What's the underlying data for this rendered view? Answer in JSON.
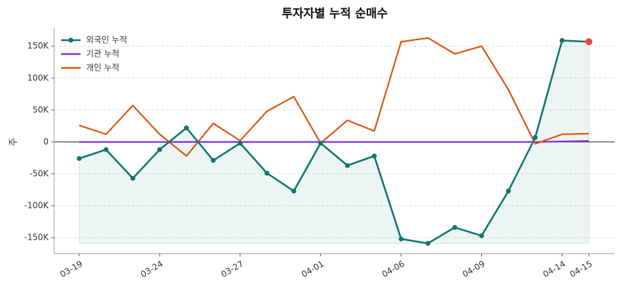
{
  "chart_data": {
    "type": "line",
    "title": "투자자별 누적 순매수",
    "y_label": "주",
    "categories": [
      "03-19",
      null,
      null,
      "03-24",
      null,
      null,
      "03-27",
      null,
      null,
      "04-01",
      null,
      null,
      "04-06",
      null,
      null,
      "04-09",
      null,
      null,
      "04-14",
      "04-15"
    ],
    "series": [
      {
        "name": "외국인 누적",
        "color": "#0f766e",
        "values": [
          -26000,
          -12000,
          -57000,
          -12000,
          22000,
          -29000,
          -2000,
          -49000,
          -77000,
          -2000,
          -37000,
          -22000,
          -152000,
          -159000,
          -134000,
          -147000,
          -77000,
          7000,
          159000,
          157000
        ]
      },
      {
        "name": "기관 누적",
        "color": "#7e2fd6",
        "values": [
          0,
          0,
          0,
          0,
          0,
          0,
          0,
          0,
          0,
          0,
          0,
          0,
          0,
          0,
          0,
          0,
          0,
          0,
          800,
          1500
        ]
      },
      {
        "name": "개인 누적",
        "color": "#e0530f",
        "values": [
          26000,
          12000,
          57000,
          12000,
          -22000,
          29000,
          2000,
          48000,
          71000,
          -2000,
          34000,
          17000,
          157000,
          163000,
          138000,
          150000,
          82000,
          -3000,
          12000,
          13000
        ]
      }
    ],
    "ylim": [
      -175000,
      179000
    ],
    "yticks": [
      {
        "value": -150000,
        "label": "-150K"
      },
      {
        "value": -100000,
        "label": "-100K"
      },
      {
        "value": -50000,
        "label": "-50K"
      },
      0,
      {
        "value": 50000,
        "label": "50K"
      },
      {
        "value": 100000,
        "label": "100K"
      },
      {
        "value": 150000,
        "label": "150K"
      }
    ],
    "grid": true,
    "legend": "upper-left"
  }
}
